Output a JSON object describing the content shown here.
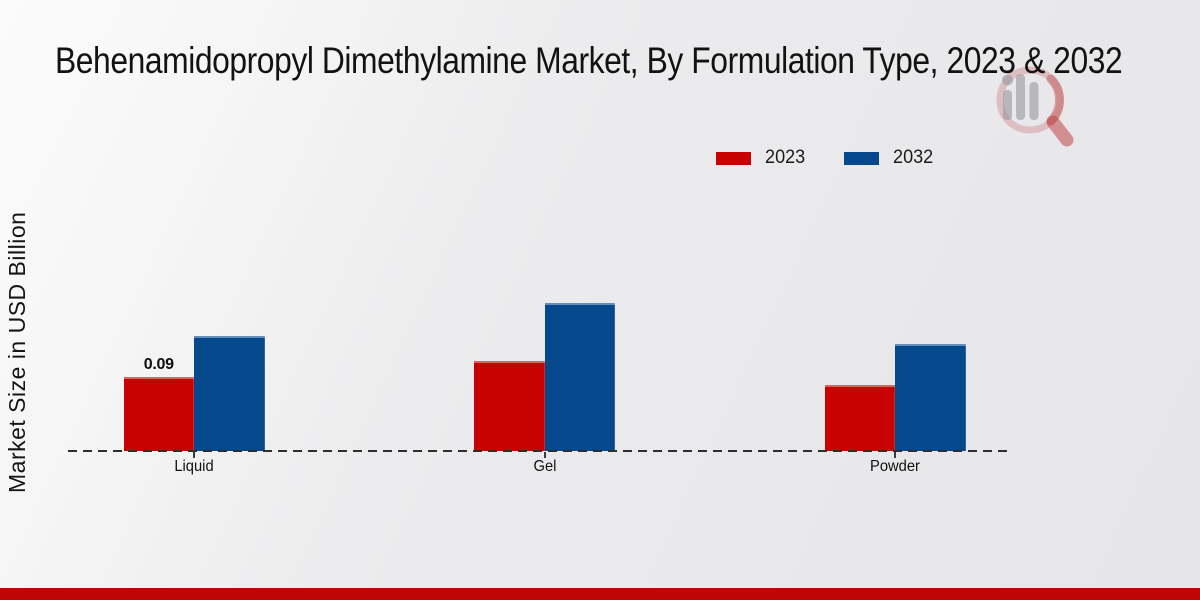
{
  "page": {
    "background_top": "#f6f6f6",
    "background_bottom": "#e6e6e8",
    "footer_bar_color": "#c00505",
    "baseline_color": "#2e2e2e",
    "watermark_icon": "magnifier-bar-chart-logo"
  },
  "chart_data": {
    "type": "bar",
    "title": "Behenamidopropyl Dimethylamine Market, By Formulation Type, 2023 & 2032",
    "xlabel": "",
    "ylabel": "Market Size in USD Billion",
    "categories": [
      "Liquid",
      "Gel",
      "Powder"
    ],
    "series": [
      {
        "name": "2023",
        "color": "#c80101",
        "values": [
          0.09,
          0.11,
          0.08
        ]
      },
      {
        "name": "2032",
        "color": "#05498c",
        "values": [
          0.14,
          0.18,
          0.13
        ]
      }
    ],
    "point_labels": [
      {
        "category": "Liquid",
        "series": "2023",
        "text": "0.09"
      }
    ],
    "ylim": [
      0,
      0.2
    ],
    "grid": false,
    "y_axis_ticks_visible": false,
    "baseline_style": "dashed",
    "legend_position": "top-right"
  }
}
